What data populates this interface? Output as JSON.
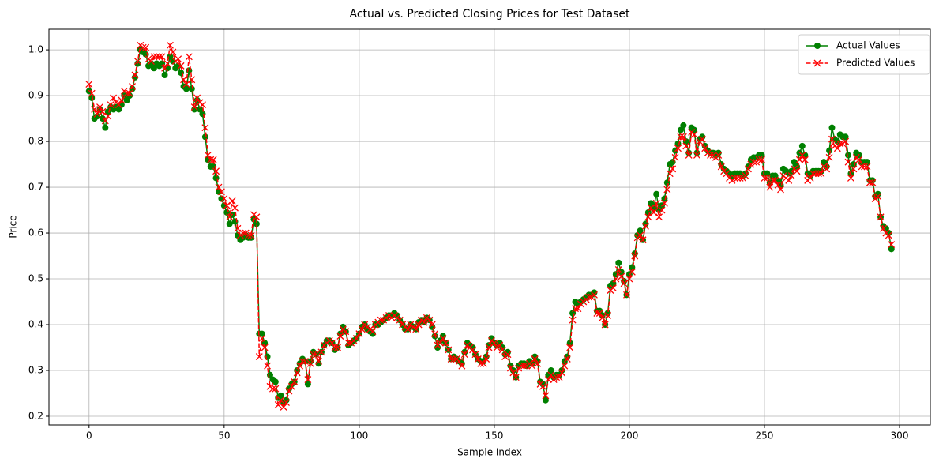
{
  "chart_data": {
    "type": "line",
    "title": "Actual vs. Predicted Closing Prices for Test Dataset",
    "xlabel": "Sample Index",
    "ylabel": "Price",
    "x": [
      0,
      1,
      2,
      3,
      4,
      5,
      6,
      7,
      8,
      9,
      10,
      11,
      12,
      13,
      14,
      15,
      16,
      17,
      18,
      19,
      20,
      21,
      22,
      23,
      24,
      25,
      26,
      27,
      28,
      29,
      30,
      31,
      32,
      33,
      34,
      35,
      36,
      37,
      38,
      39,
      40,
      41,
      42,
      43,
      44,
      45,
      46,
      47,
      48,
      49,
      50,
      51,
      52,
      53,
      54,
      55,
      56,
      57,
      58,
      59,
      60,
      61,
      62,
      63,
      64,
      65,
      66,
      67,
      68,
      69,
      70,
      71,
      72,
      73,
      74,
      75,
      76,
      77,
      78,
      79,
      80,
      81,
      82,
      83,
      84,
      85,
      86,
      87,
      88,
      89,
      90,
      91,
      92,
      93,
      94,
      95,
      96,
      97,
      98,
      99,
      100,
      101,
      102,
      103,
      104,
      105,
      106,
      107,
      108,
      109,
      110,
      111,
      112,
      113,
      114,
      115,
      116,
      117,
      118,
      119,
      120,
      121,
      122,
      123,
      124,
      125,
      126,
      127,
      128,
      129,
      130,
      131,
      132,
      133,
      134,
      135,
      136,
      137,
      138,
      139,
      140,
      141,
      142,
      143,
      144,
      145,
      146,
      147,
      148,
      149,
      150,
      151,
      152,
      153,
      154,
      155,
      156,
      157,
      158,
      159,
      160,
      161,
      162,
      163,
      164,
      165,
      166,
      167,
      168,
      169,
      170,
      171,
      172,
      173,
      174,
      175,
      176,
      177,
      178,
      179,
      180,
      181,
      182,
      183,
      184,
      185,
      186,
      187,
      188,
      189,
      190,
      191,
      192,
      193,
      194,
      195,
      196,
      197,
      198,
      199,
      200,
      201,
      202,
      203,
      204,
      205,
      206,
      207,
      208,
      209,
      210,
      211,
      212,
      213,
      214,
      215,
      216,
      217,
      218,
      219,
      220,
      221,
      222,
      223,
      224,
      225,
      226,
      227,
      228,
      229,
      230,
      231,
      232,
      233,
      234,
      235,
      236,
      237,
      238,
      239,
      240,
      241,
      242,
      243,
      244,
      245,
      246,
      247,
      248,
      249,
      250,
      251,
      252,
      253,
      254,
      255,
      256,
      257,
      258,
      259,
      260,
      261,
      262,
      263,
      264,
      265,
      266,
      267,
      268,
      269,
      270,
      271,
      272,
      273,
      274,
      275,
      276,
      277,
      278,
      279,
      280,
      281,
      282,
      283,
      284,
      285,
      286,
      287,
      288,
      289,
      290,
      291,
      292,
      293,
      294,
      295,
      296,
      297
    ],
    "series": [
      {
        "name": "Actual Values",
        "color": "#008000",
        "linestyle": "solid",
        "marker": "circle",
        "values": [
          0.91,
          0.895,
          0.85,
          0.855,
          0.87,
          0.85,
          0.83,
          0.865,
          0.875,
          0.87,
          0.875,
          0.87,
          0.88,
          0.9,
          0.89,
          0.9,
          0.915,
          0.94,
          0.97,
          1.0,
          0.995,
          0.99,
          0.965,
          0.97,
          0.96,
          0.97,
          0.965,
          0.97,
          0.945,
          0.96,
          0.985,
          0.975,
          0.96,
          0.965,
          0.95,
          0.92,
          0.915,
          0.955,
          0.915,
          0.87,
          0.89,
          0.87,
          0.86,
          0.81,
          0.76,
          0.745,
          0.745,
          0.72,
          0.69,
          0.675,
          0.66,
          0.645,
          0.62,
          0.64,
          0.625,
          0.595,
          0.585,
          0.59,
          0.595,
          0.59,
          0.59,
          0.63,
          0.62,
          0.38,
          0.38,
          0.36,
          0.33,
          0.29,
          0.28,
          0.275,
          0.24,
          0.245,
          0.23,
          0.235,
          0.26,
          0.27,
          0.275,
          0.3,
          0.315,
          0.325,
          0.32,
          0.27,
          0.32,
          0.34,
          0.335,
          0.315,
          0.34,
          0.355,
          0.365,
          0.365,
          0.36,
          0.345,
          0.35,
          0.38,
          0.395,
          0.385,
          0.355,
          0.36,
          0.365,
          0.37,
          0.38,
          0.395,
          0.4,
          0.39,
          0.385,
          0.38,
          0.4,
          0.4,
          0.405,
          0.41,
          0.415,
          0.42,
          0.42,
          0.425,
          0.42,
          0.41,
          0.4,
          0.39,
          0.39,
          0.4,
          0.395,
          0.39,
          0.405,
          0.41,
          0.405,
          0.415,
          0.41,
          0.395,
          0.375,
          0.35,
          0.365,
          0.375,
          0.36,
          0.345,
          0.325,
          0.33,
          0.325,
          0.32,
          0.315,
          0.34,
          0.36,
          0.355,
          0.35,
          0.335,
          0.325,
          0.32,
          0.32,
          0.33,
          0.355,
          0.37,
          0.36,
          0.355,
          0.36,
          0.35,
          0.335,
          0.34,
          0.31,
          0.3,
          0.285,
          0.31,
          0.315,
          0.315,
          0.31,
          0.32,
          0.315,
          0.33,
          0.32,
          0.275,
          0.27,
          0.235,
          0.29,
          0.3,
          0.285,
          0.29,
          0.29,
          0.3,
          0.32,
          0.33,
          0.36,
          0.425,
          0.45,
          0.445,
          0.45,
          0.455,
          0.46,
          0.465,
          0.465,
          0.47,
          0.43,
          0.43,
          0.42,
          0.4,
          0.425,
          0.485,
          0.49,
          0.51,
          0.535,
          0.515,
          0.495,
          0.465,
          0.51,
          0.525,
          0.555,
          0.595,
          0.605,
          0.585,
          0.62,
          0.645,
          0.665,
          0.655,
          0.685,
          0.65,
          0.66,
          0.675,
          0.71,
          0.75,
          0.755,
          0.78,
          0.795,
          0.825,
          0.835,
          0.8,
          0.775,
          0.83,
          0.825,
          0.775,
          0.805,
          0.81,
          0.79,
          0.78,
          0.775,
          0.775,
          0.77,
          0.775,
          0.75,
          0.74,
          0.735,
          0.73,
          0.725,
          0.73,
          0.73,
          0.73,
          0.725,
          0.73,
          0.745,
          0.76,
          0.765,
          0.765,
          0.77,
          0.77,
          0.73,
          0.73,
          0.71,
          0.725,
          0.725,
          0.715,
          0.705,
          0.74,
          0.735,
          0.73,
          0.735,
          0.755,
          0.745,
          0.775,
          0.79,
          0.77,
          0.73,
          0.725,
          0.735,
          0.735,
          0.735,
          0.735,
          0.755,
          0.745,
          0.78,
          0.83,
          0.805,
          0.8,
          0.815,
          0.81,
          0.81,
          0.77,
          0.73,
          0.75,
          0.775,
          0.77,
          0.755,
          0.755,
          0.755,
          0.715,
          0.715,
          0.68,
          0.685,
          0.635,
          0.615,
          0.61,
          0.6,
          0.565
        ]
      },
      {
        "name": "Predicted Values",
        "color": "#ff0000",
        "linestyle": "dashed",
        "marker": "x",
        "values": [
          0.925,
          0.905,
          0.87,
          0.86,
          0.875,
          0.865,
          0.845,
          0.855,
          0.88,
          0.895,
          0.885,
          0.88,
          0.89,
          0.91,
          0.905,
          0.905,
          0.92,
          0.945,
          0.975,
          1.01,
          1.005,
          1.005,
          0.98,
          0.975,
          0.985,
          0.985,
          0.985,
          0.985,
          0.96,
          0.97,
          1.01,
          0.995,
          0.975,
          0.98,
          0.965,
          0.935,
          0.925,
          0.985,
          0.935,
          0.875,
          0.895,
          0.885,
          0.88,
          0.83,
          0.77,
          0.76,
          0.76,
          0.735,
          0.7,
          0.69,
          0.675,
          0.66,
          0.635,
          0.67,
          0.655,
          0.61,
          0.595,
          0.6,
          0.6,
          0.595,
          0.595,
          0.64,
          0.635,
          0.33,
          0.37,
          0.35,
          0.31,
          0.265,
          0.26,
          0.26,
          0.225,
          0.235,
          0.22,
          0.23,
          0.255,
          0.265,
          0.275,
          0.295,
          0.31,
          0.32,
          0.32,
          0.28,
          0.315,
          0.335,
          0.335,
          0.32,
          0.34,
          0.355,
          0.36,
          0.365,
          0.36,
          0.35,
          0.35,
          0.375,
          0.39,
          0.385,
          0.36,
          0.36,
          0.365,
          0.37,
          0.38,
          0.39,
          0.4,
          0.395,
          0.39,
          0.385,
          0.4,
          0.405,
          0.41,
          0.41,
          0.415,
          0.42,
          0.415,
          0.42,
          0.415,
          0.41,
          0.4,
          0.395,
          0.39,
          0.4,
          0.395,
          0.39,
          0.4,
          0.41,
          0.405,
          0.415,
          0.41,
          0.4,
          0.38,
          0.355,
          0.36,
          0.37,
          0.36,
          0.345,
          0.325,
          0.325,
          0.325,
          0.32,
          0.31,
          0.335,
          0.355,
          0.35,
          0.345,
          0.335,
          0.325,
          0.315,
          0.315,
          0.325,
          0.35,
          0.365,
          0.36,
          0.35,
          0.355,
          0.345,
          0.33,
          0.335,
          0.305,
          0.295,
          0.285,
          0.305,
          0.31,
          0.31,
          0.31,
          0.315,
          0.31,
          0.325,
          0.315,
          0.27,
          0.265,
          0.245,
          0.28,
          0.29,
          0.28,
          0.285,
          0.285,
          0.295,
          0.31,
          0.325,
          0.35,
          0.41,
          0.435,
          0.435,
          0.445,
          0.45,
          0.455,
          0.46,
          0.46,
          0.465,
          0.425,
          0.425,
          0.415,
          0.4,
          0.42,
          0.475,
          0.48,
          0.5,
          0.52,
          0.505,
          0.49,
          0.465,
          0.5,
          0.515,
          0.55,
          0.59,
          0.595,
          0.585,
          0.615,
          0.635,
          0.655,
          0.645,
          0.665,
          0.635,
          0.65,
          0.665,
          0.695,
          0.73,
          0.74,
          0.765,
          0.785,
          0.81,
          0.81,
          0.79,
          0.77,
          0.82,
          0.815,
          0.77,
          0.8,
          0.805,
          0.785,
          0.775,
          0.77,
          0.77,
          0.765,
          0.77,
          0.745,
          0.735,
          0.73,
          0.72,
          0.715,
          0.72,
          0.72,
          0.72,
          0.72,
          0.725,
          0.74,
          0.75,
          0.755,
          0.755,
          0.76,
          0.76,
          0.72,
          0.72,
          0.7,
          0.715,
          0.715,
          0.705,
          0.695,
          0.725,
          0.72,
          0.715,
          0.725,
          0.74,
          0.735,
          0.76,
          0.77,
          0.76,
          0.715,
          0.72,
          0.73,
          0.73,
          0.73,
          0.73,
          0.745,
          0.74,
          0.765,
          0.805,
          0.79,
          0.785,
          0.795,
          0.795,
          0.8,
          0.755,
          0.72,
          0.74,
          0.765,
          0.76,
          0.745,
          0.745,
          0.745,
          0.71,
          0.71,
          0.675,
          0.68,
          0.635,
          0.61,
          0.6,
          0.595,
          0.575
        ]
      }
    ],
    "xlim": [
      -14.85,
      311.4
    ],
    "ylim": [
      0.181,
      1.045
    ],
    "xticks": [
      0,
      50,
      100,
      150,
      200,
      250,
      300
    ],
    "yticks": [
      0.2,
      0.3,
      0.4,
      0.5,
      0.6,
      0.7,
      0.8,
      0.9,
      {
        "value": 1,
        "label": "1.0"
      }
    ],
    "grid": true,
    "legend": "upper right"
  }
}
